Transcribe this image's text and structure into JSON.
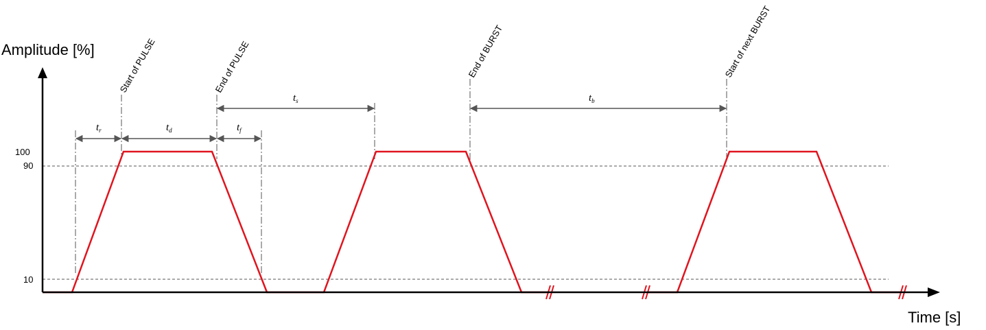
{
  "y_axis": {
    "title": "Amplitude [%]"
  },
  "x_axis": {
    "title": "Time [s]"
  },
  "ticks": {
    "t100": "100",
    "t90": "90",
    "t10": "10"
  },
  "events": {
    "start_pulse": "Start of PULSE",
    "end_pulse": "End of PULSE",
    "end_burst": "End of BURST",
    "start_next_burst": "Start of next BURST"
  },
  "params": {
    "tr": {
      "main": "t",
      "sub": "r"
    },
    "td": {
      "main": "t",
      "sub": "d"
    },
    "tf": {
      "main": "t",
      "sub": "f"
    },
    "ts": {
      "main": "t",
      "sub": "s"
    },
    "tb": {
      "main": "t",
      "sub": "b"
    }
  },
  "colors": {
    "signal": "#e0141e",
    "axis": "#000000",
    "dimension": "#555555",
    "guide": "#555555"
  }
}
